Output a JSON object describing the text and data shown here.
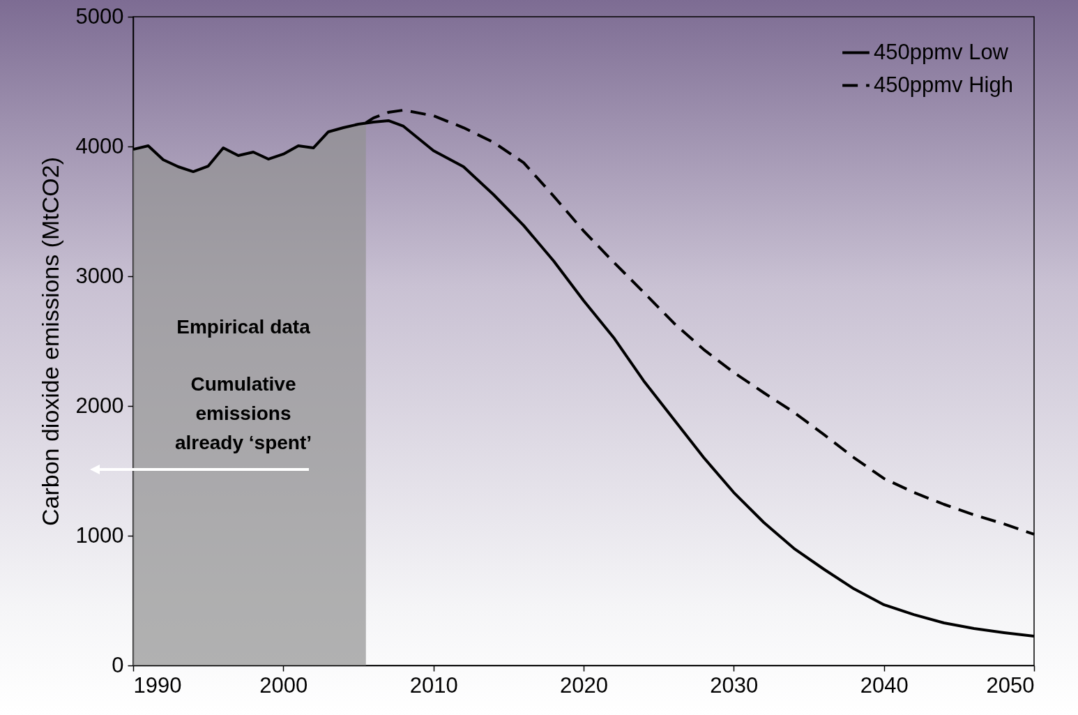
{
  "chart_data": {
    "type": "line",
    "ylabel": "Carbon dioxide emissions (MtCO2)",
    "xlim": [
      1990,
      2050
    ],
    "ylim": [
      0,
      5000
    ],
    "xticks": [
      1990,
      2000,
      2010,
      2020,
      2030,
      2040,
      2050
    ],
    "yticks": [
      0,
      1000,
      2000,
      3000,
      4000,
      5000
    ],
    "grid": false,
    "legend": "top right",
    "annotations": [
      "Empirical data",
      "Cumulative emissions already ‘spent’"
    ],
    "series": [
      {
        "type": "area",
        "color": "#929292",
        "x": [
          1990,
          1991,
          1992,
          1993,
          1994,
          1995,
          1996,
          1997,
          1998,
          1999,
          2000,
          2001,
          2002,
          2003,
          2004,
          2005,
          2005.5
        ],
        "values": [
          3978,
          4005,
          3898,
          3844,
          3806,
          3849,
          3989,
          3930,
          3957,
          3903,
          3941,
          4005,
          3989,
          4113,
          4145,
          4172,
          4183
        ]
      },
      {
        "name": "450ppmv Low",
        "color": "#000000",
        "line_style": "solid",
        "x": [
          1990,
          1991,
          1992,
          1993,
          1994,
          1995,
          1996,
          1997,
          1998,
          1999,
          2000,
          2001,
          2002,
          2003,
          2004,
          2005,
          2006,
          2007,
          2008,
          2010,
          2012,
          2014,
          2016,
          2018,
          2020,
          2022,
          2024,
          2026,
          2028,
          2030,
          2032,
          2034,
          2036,
          2038,
          2040,
          2042,
          2044,
          2046,
          2048,
          2050
        ],
        "values": [
          3978,
          4005,
          3898,
          3844,
          3806,
          3849,
          3989,
          3930,
          3957,
          3903,
          3941,
          4005,
          3989,
          4113,
          4145,
          4172,
          4188,
          4199,
          4156,
          3968,
          3844,
          3629,
          3392,
          3118,
          2812,
          2527,
          2194,
          1898,
          1602,
          1333,
          1102,
          903,
          742,
          591,
          468,
          392,
          328,
          285,
          253,
          226
        ]
      },
      {
        "name": "450ppmv High",
        "color": "#000000",
        "line_style": "dashed",
        "x": [
          2005.5,
          2006,
          2007,
          2008,
          2010,
          2012,
          2014,
          2016,
          2018,
          2020,
          2022,
          2024,
          2026,
          2028,
          2030,
          2032,
          2034,
          2036,
          2038,
          2040,
          2042,
          2044,
          2046,
          2048,
          2050
        ],
        "values": [
          4183,
          4220,
          4263,
          4280,
          4237,
          4145,
          4032,
          3876,
          3618,
          3349,
          3108,
          2876,
          2640,
          2435,
          2258,
          2102,
          1952,
          1780,
          1602,
          1441,
          1333,
          1242,
          1161,
          1091,
          1011
        ]
      }
    ]
  }
}
